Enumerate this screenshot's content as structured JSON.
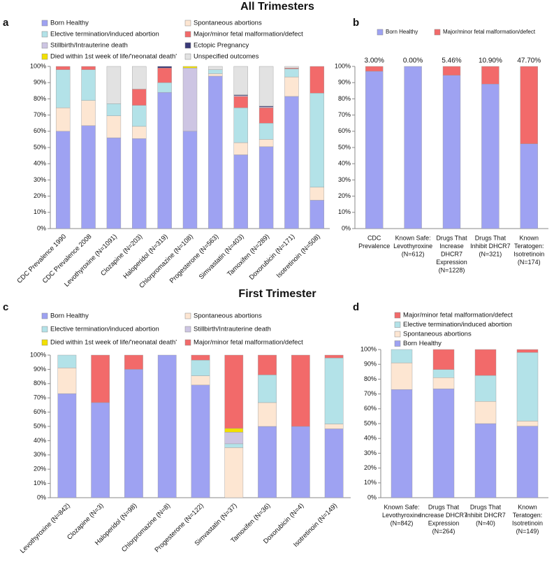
{
  "headings": [
    "All Trimesters",
    "First Trimester"
  ],
  "chart_data": [
    {
      "type": "bar",
      "stacked": true,
      "label": "a",
      "categories": [
        "CDC Prevalence 1990",
        "CDC Prevalence 2008",
        "Levothyroxine (N=1091)",
        "Clozapine (N=203)",
        "Haloperidol (N=319)",
        "Chlorpromazine (N=108)",
        "Progesterone (N=563)",
        "Simvastatin (N=403)",
        "Tamoxifen (N=289)",
        "Doxorubicin (N=171)",
        "Isotretinoin (N=508)"
      ],
      "series": [
        {
          "name": "Born Healthy",
          "color": "#9ea2f2",
          "values": [
            60,
            63.5,
            56,
            55.5,
            84,
            60,
            94,
            45.5,
            50.5,
            81.5,
            17.5
          ]
        },
        {
          "name": "Spontaneous abortions",
          "color": "#fde6d2",
          "values": [
            14.5,
            15.5,
            13.5,
            7.5,
            0,
            0,
            1.5,
            7.5,
            4.5,
            12,
            8
          ]
        },
        {
          "name": "Elective termination/induced abortion",
          "color": "#b3e2e8",
          "values": [
            23.5,
            19,
            7.5,
            13,
            6,
            0,
            2.5,
            21.5,
            10,
            5,
            58
          ]
        },
        {
          "name": "Major/minor fetal malformation/defect",
          "color": "#f26a6a",
          "values": [
            2,
            2,
            0,
            10,
            9,
            0,
            0,
            7,
            9.5,
            0.5,
            16.5
          ]
        },
        {
          "name": "Stillbirth/Intrauterine death",
          "color": "#cdc5e3",
          "values": [
            0,
            0,
            0,
            0,
            0,
            39,
            0,
            0.5,
            0.5,
            0,
            0
          ]
        },
        {
          "name": "Ectopic Pregnancy",
          "color": "#3a3a78",
          "values": [
            0,
            0,
            0,
            0,
            1,
            0,
            0,
            0.5,
            0.5,
            0,
            0
          ]
        },
        {
          "name": "Died within 1st week of life/'neonatal death'",
          "color": "#f2e000",
          "values": [
            0,
            0,
            0,
            0,
            0,
            1,
            0,
            0,
            0,
            0,
            0
          ]
        },
        {
          "name": "Unspecified outcomes",
          "color": "#e2e2e2",
          "values": [
            0,
            0,
            23,
            14,
            0,
            0,
            2,
            17.5,
            24.5,
            1,
            0
          ]
        }
      ],
      "ylim": [
        0,
        100
      ],
      "yticks": [
        {
          "value": 0,
          "label": "0%"
        },
        {
          "value": 10,
          "label": "10%"
        },
        {
          "value": 20,
          "label": "20%"
        },
        {
          "value": 30,
          "label": "30%"
        },
        {
          "value": 40,
          "label": "40%"
        },
        {
          "value": 50,
          "label": "50%"
        },
        {
          "value": 60,
          "label": "60%"
        },
        {
          "value": 70,
          "label": "70%"
        },
        {
          "value": 80,
          "label": "80%"
        },
        {
          "value": 90,
          "label": "90%"
        },
        {
          "value": 100,
          "label": "100%"
        }
      ]
    },
    {
      "type": "bar",
      "stacked": true,
      "label": "b",
      "categories": [
        [
          "CDC",
          "Prevalence"
        ],
        [
          "Known Safe:",
          "Levothyroxine",
          "(N=612)"
        ],
        [
          "Drugs That",
          "Increase",
          "DHCR7",
          "Expression",
          "(N=1228)"
        ],
        [
          "Drugs That",
          "Inhibit DHCR7",
          "(N=321)"
        ],
        [
          "Known",
          "Teratogen:",
          "Isotretinoin",
          "(N=174)"
        ]
      ],
      "series": [
        {
          "name": "Born Healthy",
          "color": "#9ea2f2",
          "values": [
            97,
            100,
            94.54,
            89.1,
            52.3
          ]
        },
        {
          "name": "Major/minor fetal malformation/defect",
          "color": "#f26a6a",
          "values": [
            3,
            0,
            5.46,
            10.9,
            47.7
          ],
          "value_labels": [
            "3.00%",
            "0.00%",
            "5.46%",
            "10.90%",
            "47.70%"
          ]
        }
      ],
      "ylim": [
        0,
        100
      ],
      "yticks": [
        {
          "value": 0,
          "label": "0%"
        },
        {
          "value": 10,
          "label": "10%"
        },
        {
          "value": 20,
          "label": "20%"
        },
        {
          "value": 30,
          "label": "30%"
        },
        {
          "value": 40,
          "label": "40%"
        },
        {
          "value": 50,
          "label": "50%"
        },
        {
          "value": 60,
          "label": "60%"
        },
        {
          "value": 70,
          "label": "70%"
        },
        {
          "value": 80,
          "label": "80%"
        },
        {
          "value": 90,
          "label": "90%"
        },
        {
          "value": 100,
          "label": "100%"
        }
      ]
    },
    {
      "type": "bar",
      "stacked": true,
      "label": "c",
      "categories": [
        "Levothyroxine (N=842)",
        "Clozapine (N=3)",
        "Haloperidol (N=98)",
        "Chlorpromazine (N=8)",
        "Progesterone (N=122)",
        "Simvastatin (N=37)",
        "Tamoxifen (N=36)",
        "Doxorubicin (N=4)",
        "Isotretinoin (N=149)"
      ],
      "series": [
        {
          "name": "Born Healthy",
          "color": "#9ea2f2",
          "values": [
            73,
            66.7,
            90,
            100,
            79,
            0,
            50,
            50,
            48.3
          ]
        },
        {
          "name": "Spontaneous abortions",
          "color": "#fde6d2",
          "values": [
            18,
            0,
            0,
            0,
            6.5,
            35.1,
            16.7,
            0,
            3.4
          ]
        },
        {
          "name": "Elective termination/induced abortion",
          "color": "#b3e2e8",
          "values": [
            9,
            0,
            0,
            0,
            11,
            2.7,
            19.4,
            0,
            46.3
          ]
        },
        {
          "name": "Stillbirth/Intrauterine death",
          "color": "#cdc5e3",
          "values": [
            0,
            0,
            0,
            0,
            0,
            8.1,
            0,
            0,
            0
          ]
        },
        {
          "name": "Died within 1st week of life/'neonatal death'",
          "color": "#f2e000",
          "values": [
            0,
            0,
            0,
            0,
            0,
            2.7,
            0,
            0,
            0
          ]
        },
        {
          "name": "Major/minor fetal malformation/defect",
          "color": "#f26a6a",
          "values": [
            0,
            33.3,
            10,
            0,
            3.5,
            51.4,
            13.9,
            50,
            2
          ]
        }
      ],
      "ylim": [
        0,
        100
      ],
      "yticks": [
        {
          "value": 0,
          "label": "0%"
        },
        {
          "value": 10,
          "label": "10%"
        },
        {
          "value": 20,
          "label": "20%"
        },
        {
          "value": 30,
          "label": "30%"
        },
        {
          "value": 40,
          "label": "40%"
        },
        {
          "value": 50,
          "label": "50%"
        },
        {
          "value": 60,
          "label": "60%"
        },
        {
          "value": 70,
          "label": "70%"
        },
        {
          "value": 80,
          "label": "80%"
        },
        {
          "value": 90,
          "label": "90%"
        },
        {
          "value": 100,
          "label": "100%"
        }
      ]
    },
    {
      "type": "bar",
      "stacked": true,
      "label": "d",
      "categories": [
        [
          "Known Safe:",
          "Levothyroxine",
          "(N=842)"
        ],
        [
          "Drugs That",
          "Increase DHCR7",
          "Expression",
          "(N=264)"
        ],
        [
          "Drugs That",
          "Inhibit DHCR7",
          "(N=40)"
        ],
        [
          "Known",
          "Teratogen:",
          "Isotretinoin",
          "(N=149)"
        ]
      ],
      "series": [
        {
          "name": "Born Healthy",
          "color": "#9ea2f2",
          "values": [
            73,
            73.5,
            50,
            48.3
          ]
        },
        {
          "name": "Spontaneous abortions",
          "color": "#fde6d2",
          "values": [
            18,
            7.5,
            15,
            3.4
          ]
        },
        {
          "name": "Elective termination/induced abortion",
          "color": "#b3e2e8",
          "values": [
            9,
            5.5,
            17.5,
            46.3
          ]
        },
        {
          "name": "Major/minor fetal malformation/defect",
          "color": "#f26a6a",
          "values": [
            0,
            13.5,
            17.5,
            2
          ]
        }
      ],
      "ylim": [
        0,
        100
      ],
      "yticks": [
        {
          "value": 0,
          "label": "0%"
        },
        {
          "value": 10,
          "label": "10%"
        },
        {
          "value": 20,
          "label": "20%"
        },
        {
          "value": 30,
          "label": "30%"
        },
        {
          "value": 40,
          "label": "40%"
        },
        {
          "value": 50,
          "label": "50%"
        },
        {
          "value": 60,
          "label": "60%"
        },
        {
          "value": 70,
          "label": "70%"
        },
        {
          "value": 80,
          "label": "80%"
        },
        {
          "value": 90,
          "label": "90%"
        },
        {
          "value": 100,
          "label": "100%"
        }
      ]
    }
  ]
}
